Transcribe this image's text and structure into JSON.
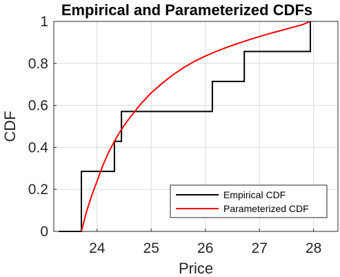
{
  "chart_data": {
    "type": "line",
    "title": "Empirical and Parameterized CDFs",
    "xlabel": "Price",
    "ylabel": "CDF",
    "xlim": [
      23.2,
      28.45
    ],
    "ylim": [
      0,
      1
    ],
    "xticks": [
      "24",
      "25",
      "26",
      "27",
      "28"
    ],
    "xtick_values": [
      24,
      25,
      26,
      27,
      28
    ],
    "yticks": [
      "0",
      "0.2",
      "0.4",
      "0.6",
      "0.8",
      "1"
    ],
    "ytick_values": [
      0,
      0.2,
      0.4,
      0.6,
      0.8,
      1
    ],
    "grid": true,
    "legend_position": "bottom-right",
    "series": [
      {
        "name": "Empirical CDF",
        "color": "#000000",
        "style": "step",
        "x": [
          23.29,
          23.71,
          23.71,
          24.32,
          24.32,
          24.45,
          24.45,
          26.13,
          26.13,
          26.72,
          26.72,
          27.94,
          27.94
        ],
        "y": [
          0,
          0,
          0.286,
          0.286,
          0.429,
          0.429,
          0.571,
          0.571,
          0.714,
          0.714,
          0.857,
          0.857,
          1
        ]
      },
      {
        "name": "Parameterized CDF",
        "color": "#ff0000",
        "style": "line",
        "x": [
          23.71,
          23.8,
          23.9,
          24.0,
          24.1,
          24.2,
          24.3,
          24.4,
          24.5,
          24.6,
          24.8,
          25.0,
          25.2,
          25.4,
          25.6,
          25.8,
          26.0,
          26.2,
          26.4,
          26.6,
          26.8,
          27.0,
          27.2,
          27.4,
          27.6,
          27.8,
          27.94
        ],
        "y": [
          0.0,
          0.09,
          0.17,
          0.24,
          0.31,
          0.37,
          0.42,
          0.465,
          0.505,
          0.54,
          0.605,
          0.66,
          0.705,
          0.745,
          0.78,
          0.81,
          0.835,
          0.857,
          0.877,
          0.895,
          0.912,
          0.928,
          0.943,
          0.957,
          0.971,
          0.985,
          1.0
        ]
      }
    ]
  }
}
